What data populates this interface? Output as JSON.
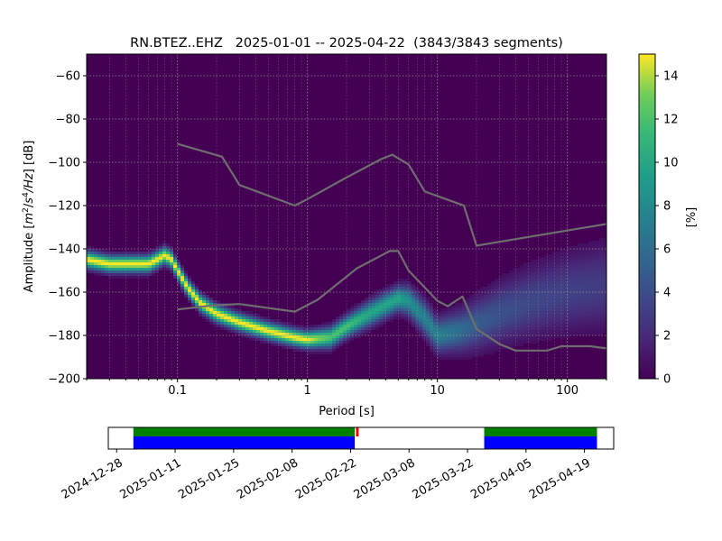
{
  "chart_data": [
    {
      "type": "heatmap",
      "title": "RN.BTEZ..EHZ   2025-01-01 -- 2025-04-22  (3843/3843 segments)",
      "xlabel": "Period [s]",
      "ylabel": "Amplitude [m²/s⁴/Hz] [dB]",
      "ylabel_parts": {
        "main": "Amplitude [",
        "m": "m",
        "e1": "2",
        "slash": "/",
        "s": "s",
        "e2": "4",
        "hz": "/Hz",
        "tail": "] [dB]"
      },
      "xscale": "log",
      "xlim": [
        0.02,
        200
      ],
      "ylim": [
        -200,
        -50
      ],
      "x_ticks": [
        0.1,
        1,
        10,
        100
      ],
      "x_tick_labels": [
        "0.1",
        "1",
        "10",
        "100"
      ],
      "y_ticks": [
        -200,
        -180,
        -160,
        -140,
        -120,
        -100,
        -80,
        -60
      ],
      "y_tick_labels": [
        "−200",
        "−180",
        "−160",
        "−140",
        "−120",
        "−100",
        "−80",
        "−60"
      ],
      "grid": true,
      "colorbar": {
        "label": "[%]",
        "range": [
          0,
          15
        ],
        "ticks": [
          0,
          2,
          4,
          6,
          8,
          10,
          12,
          14
        ],
        "tick_labels": [
          "0",
          "2",
          "4",
          "6",
          "8",
          "10",
          "12",
          "14"
        ],
        "colormap": "viridis"
      },
      "mode_curve": {
        "period": [
          0.02,
          0.03,
          0.04,
          0.05,
          0.06,
          0.07,
          0.08,
          0.09,
          0.1,
          0.12,
          0.15,
          0.2,
          0.3,
          0.5,
          0.8,
          1.0,
          1.5,
          2.0,
          3.0,
          4.0,
          5.0,
          6.0,
          8.0,
          10.0,
          15.0,
          20.0,
          30.0,
          50.0,
          100.0,
          200.0
        ],
        "amplitude": [
          -145,
          -147,
          -147,
          -147,
          -147,
          -145,
          -143,
          -145,
          -150,
          -158,
          -165,
          -170,
          -174,
          -178,
          -181,
          -182,
          -181,
          -176,
          -170,
          -166,
          -163,
          -164,
          -172,
          -180,
          -178,
          -175,
          -170,
          -165,
          -160,
          -157
        ]
      },
      "spread_db": [
        4,
        4,
        4,
        4,
        4,
        4,
        4,
        4,
        4,
        4,
        4,
        4,
        4,
        4,
        4,
        4,
        5,
        5,
        6,
        6,
        6,
        7,
        8,
        8,
        10,
        12,
        14,
        16,
        18,
        20
      ],
      "reference_curves": [
        {
          "period": [
            0.1,
            0.22,
            0.3,
            0.8,
            1.0,
            2.0,
            3.7,
            4.5,
            6.0,
            8.0,
            16.0,
            20.0,
            200.0
          ],
          "amplitude": [
            -91.5,
            -97.4,
            -110.5,
            -120.0,
            -117.0,
            -107.0,
            -98.5,
            -96.5,
            -101.0,
            -113.5,
            -120.0,
            -138.5,
            -128.5
          ]
        },
        {
          "period": [
            0.1,
            0.2,
            0.3,
            0.8,
            1.2,
            2.4,
            4.3,
            5.0,
            6.0,
            10.0,
            12.0,
            15.6,
            20.0,
            30.0,
            40.0,
            70.0,
            90.0,
            110.0,
            150.0,
            200.0
          ],
          "amplitude": [
            -168.0,
            -166.0,
            -165.5,
            -169.0,
            -163.5,
            -149.0,
            -141.0,
            -141.0,
            -150.0,
            -164.0,
            -166.5,
            -162.0,
            -177.0,
            -184.0,
            -187.0,
            -187.0,
            -185.0,
            -185.0,
            -185.0,
            -186.0
          ]
        }
      ]
    },
    {
      "type": "timeline",
      "date_range": [
        "2024-12-26",
        "2025-04-26"
      ],
      "tick_dates": [
        "2024-12-28",
        "2025-01-11",
        "2025-01-25",
        "2025-02-08",
        "2025-02-22",
        "2025-03-08",
        "2025-03-22",
        "2025-04-05",
        "2025-04-19"
      ],
      "tick_labels": [
        "2024-12-28",
        "2025-01-11",
        "2025-01-25",
        "2025-02-08",
        "2025-02-22",
        "2025-03-08",
        "2025-03-22",
        "2025-04-05",
        "2025-04-19"
      ],
      "data_segments": [
        [
          "2025-01-01",
          "2025-02-23"
        ],
        [
          "2025-03-26",
          "2025-04-22"
        ]
      ],
      "segment_colors": {
        "used": "#008000",
        "data": "#0000ff",
        "gap": "#ff0000"
      },
      "gap_marks": [
        "2025-02-22"
      ]
    }
  ]
}
